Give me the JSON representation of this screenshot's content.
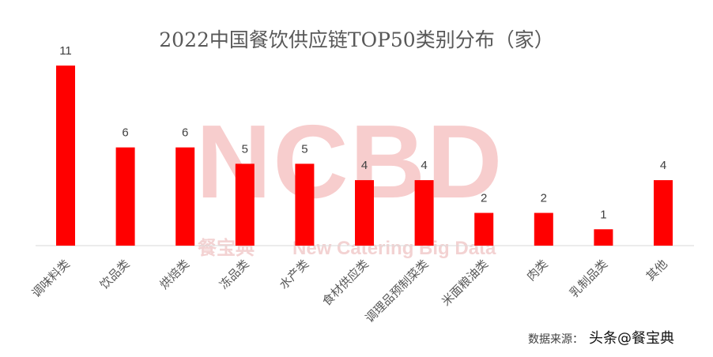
{
  "chart_data": {
    "type": "bar",
    "title": "2022中国餐饮供应链TOP50类别分布（家）",
    "categories": [
      "调味料类",
      "饮品类",
      "烘焙类",
      "冻品类",
      "水产类",
      "食材供应类",
      "调理品预制菜类",
      "米面粮油类",
      "肉类",
      "乳制品类",
      "其他"
    ],
    "values": [
      11,
      6,
      6,
      5,
      5,
      4,
      4,
      2,
      2,
      1,
      4
    ],
    "ylim": [
      0,
      11
    ],
    "grid": false,
    "legend": "none",
    "bar_color": "#ff0000"
  },
  "watermark": {
    "big": "NCBD",
    "cn": "餐宝典",
    "en": "New Catering Big Data"
  },
  "source": {
    "label": "数据来源：",
    "overlay": "头条@餐宝典"
  }
}
